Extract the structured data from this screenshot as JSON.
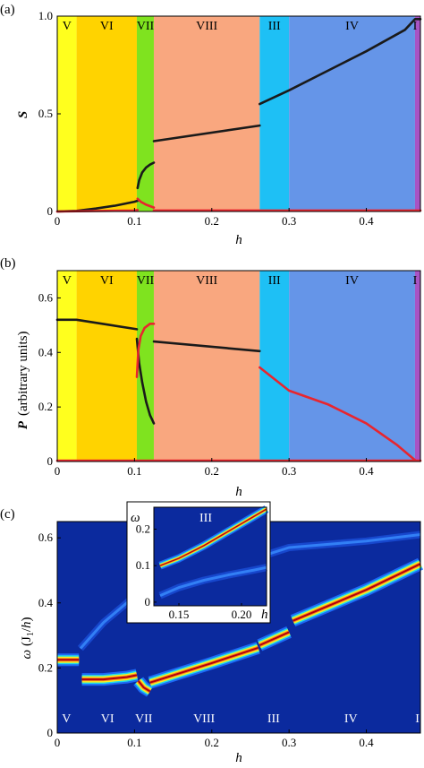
{
  "chart_data": [
    {
      "type": "line",
      "panel_label": "(a)",
      "xlabel": "h",
      "ylabel": "S",
      "xlim": [
        0,
        0.47
      ],
      "ylim": [
        0,
        1.0
      ],
      "x_ticks": [
        0,
        0.1,
        0.2,
        0.3,
        0.4
      ],
      "x_tick_labels": [
        "0",
        "0.1",
        "0.2",
        "0.3",
        "0.4"
      ],
      "y_ticks": [
        0,
        0.5,
        1.0
      ],
      "y_tick_labels": [
        "0",
        "0.5",
        "1.0"
      ],
      "regions": [
        {
          "label": "V",
          "from": 0,
          "to": 0.025,
          "color": "#ffff1e"
        },
        {
          "label": "VI",
          "from": 0.025,
          "to": 0.103,
          "color": "#ffd300"
        },
        {
          "label": "VII",
          "from": 0.103,
          "to": 0.125,
          "color": "#7fe31f"
        },
        {
          "label": "VIII",
          "from": 0.125,
          "to": 0.262,
          "color": "#f9a77f"
        },
        {
          "label": "III",
          "from": 0.262,
          "to": 0.3,
          "color": "#1ec0f5"
        },
        {
          "label": "IV",
          "from": 0.3,
          "to": 0.463,
          "color": "#6595e8"
        },
        {
          "label": "I",
          "from": 0.463,
          "to": 0.47,
          "color": "#a854c4"
        }
      ],
      "series": [
        {
          "color": "#1a1a1a",
          "segments": [
            [
              [
                0,
                0
              ],
              [
                0.025,
                0.003
              ],
              [
                0.05,
                0.015
              ],
              [
                0.075,
                0.03
              ],
              [
                0.1,
                0.05
              ],
              [
                0.104,
                0.055
              ]
            ],
            [
              [
                0.104,
                0.12
              ],
              [
                0.106,
                0.16
              ],
              [
                0.11,
                0.2
              ],
              [
                0.115,
                0.225
              ],
              [
                0.12,
                0.24
              ],
              [
                0.125,
                0.25
              ]
            ],
            [
              [
                0.125,
                0.36
              ],
              [
                0.262,
                0.44
              ]
            ],
            [
              [
                0.262,
                0.55
              ],
              [
                0.3,
                0.62
              ],
              [
                0.35,
                0.72
              ],
              [
                0.4,
                0.82
              ],
              [
                0.45,
                0.93
              ],
              [
                0.463,
                0.985
              ],
              [
                0.47,
                0.985
              ]
            ]
          ]
        },
        {
          "color": "#e8252e",
          "segments": [
            [
              [
                0,
                0
              ],
              [
                0.1,
                0.005
              ],
              [
                0.104,
                0.008
              ]
            ],
            [
              [
                0.104,
                0.065
              ],
              [
                0.108,
                0.05
              ],
              [
                0.115,
                0.035
              ],
              [
                0.125,
                0.02
              ]
            ],
            [
              [
                0.125,
                0.005
              ],
              [
                0.47,
                0.005
              ]
            ]
          ]
        }
      ]
    },
    {
      "type": "line",
      "panel_label": "(b)",
      "xlabel": "h",
      "ylabel": "P",
      "ylabel_suffix": "(arbitrary units)",
      "xlim": [
        0,
        0.47
      ],
      "ylim": [
        0,
        0.7
      ],
      "x_ticks": [
        0,
        0.1,
        0.2,
        0.3,
        0.4
      ],
      "x_tick_labels": [
        "0",
        "0.1",
        "0.2",
        "0.3",
        "0.4"
      ],
      "y_ticks": [
        0,
        0.2,
        0.4,
        0.6
      ],
      "y_tick_labels": [
        "0",
        "0.2",
        "0.4",
        "0.6"
      ],
      "regions": [
        {
          "label": "V",
          "from": 0,
          "to": 0.025,
          "color": "#ffff1e"
        },
        {
          "label": "VI",
          "from": 0.025,
          "to": 0.103,
          "color": "#ffd300"
        },
        {
          "label": "VII",
          "from": 0.103,
          "to": 0.125,
          "color": "#7fe31f"
        },
        {
          "label": "VIII",
          "from": 0.125,
          "to": 0.262,
          "color": "#f9a77f"
        },
        {
          "label": "III",
          "from": 0.262,
          "to": 0.3,
          "color": "#1ec0f5"
        },
        {
          "label": "IV",
          "from": 0.3,
          "to": 0.463,
          "color": "#6595e8"
        },
        {
          "label": "I",
          "from": 0.463,
          "to": 0.47,
          "color": "#a854c4"
        }
      ],
      "series": [
        {
          "color": "#1a1a1a",
          "segments": [
            [
              [
                0,
                0.52
              ],
              [
                0.025,
                0.52
              ],
              [
                0.103,
                0.485
              ]
            ],
            [
              [
                0.103,
                0.45
              ],
              [
                0.106,
                0.36
              ],
              [
                0.11,
                0.29
              ],
              [
                0.115,
                0.22
              ],
              [
                0.12,
                0.17
              ],
              [
                0.125,
                0.14
              ]
            ],
            [
              [
                0.125,
                0.44
              ],
              [
                0.262,
                0.405
              ]
            ]
          ]
        },
        {
          "color": "#e8252e",
          "segments": [
            [
              [
                0.103,
                0.31
              ],
              [
                0.105,
                0.41
              ],
              [
                0.108,
                0.46
              ],
              [
                0.113,
                0.49
              ],
              [
                0.12,
                0.505
              ],
              [
                0.125,
                0.505
              ]
            ],
            [
              [
                0.262,
                0.345
              ],
              [
                0.3,
                0.26
              ],
              [
                0.35,
                0.21
              ],
              [
                0.4,
                0.14
              ],
              [
                0.44,
                0.06
              ],
              [
                0.463,
                0.005
              ]
            ],
            [
              [
                0,
                0.003
              ],
              [
                0.47,
                0.003
              ]
            ]
          ]
        }
      ]
    },
    {
      "type": "heatmap",
      "panel_label": "(c)",
      "xlabel": "h",
      "ylabel": "ω (J1/h)",
      "ylabel_parts": [
        "ω",
        "(J",
        "1",
        "/",
        "h",
        ")"
      ],
      "xlim": [
        0,
        0.47
      ],
      "ylim": [
        0,
        0.65
      ],
      "x_ticks": [
        0,
        0.1,
        0.2,
        0.3,
        0.4
      ],
      "x_tick_labels": [
        "0",
        "0.1",
        "0.2",
        "0.3",
        "0.4"
      ],
      "y_ticks": [
        0,
        0.2,
        0.4,
        0.6
      ],
      "y_tick_labels": [
        "0",
        "0.2",
        "0.4",
        "0.6"
      ],
      "region_labels": [
        {
          "label": "V",
          "x": 0.012
        },
        {
          "label": "VI",
          "x": 0.065
        },
        {
          "label": "VII",
          "x": 0.112
        },
        {
          "label": "VIII",
          "x": 0.19
        },
        {
          "label": "III",
          "x": 0.28
        },
        {
          "label": "IV",
          "x": 0.38
        },
        {
          "label": "I",
          "x": 0.466
        }
      ],
      "modes": [
        {
          "segments": [
            [
              [
                0,
                0.225
              ],
              [
                0.028,
                0.225
              ]
            ],
            [
              [
                0.032,
                0.165
              ],
              [
                0.06,
                0.165
              ],
              [
                0.09,
                0.172
              ],
              [
                0.103,
                0.178
              ]
            ],
            [
              [
                0.105,
                0.16
              ],
              [
                0.112,
                0.14
              ],
              [
                0.12,
                0.128
              ]
            ],
            [
              [
                0.12,
                0.155
              ],
              [
                0.2,
                0.215
              ],
              [
                0.26,
                0.262
              ]
            ],
            [
              [
                0.262,
                0.27
              ],
              [
                0.3,
                0.31
              ]
            ],
            [
              [
                0.305,
                0.345
              ],
              [
                0.35,
                0.39
              ],
              [
                0.4,
                0.44
              ],
              [
                0.47,
                0.52
              ]
            ]
          ]
        },
        {
          "segments": [
            [
              [
                0.03,
                0.26
              ],
              [
                0.06,
                0.34
              ],
              [
                0.09,
                0.4
              ],
              [
                0.103,
                0.43
              ]
            ],
            [
              [
                0.12,
                0.45
              ],
              [
                0.2,
                0.5
              ],
              [
                0.26,
                0.54
              ],
              [
                0.3,
                0.57
              ],
              [
                0.4,
                0.59
              ],
              [
                0.47,
                0.61
              ]
            ]
          ],
          "faint": true
        }
      ],
      "inset": {
        "ylabel": "ω",
        "region_label": "III",
        "xlabel": "h",
        "xlim": [
          0.13,
          0.22
        ],
        "ylim": [
          -0.01,
          0.26
        ],
        "x_ticks": [
          0.15,
          0.2
        ],
        "x_tick_labels": [
          "0.15",
          "0.20"
        ],
        "y_ticks": [
          0,
          0.1,
          0.2
        ],
        "y_tick_labels": [
          "0",
          "0.1",
          "0.2"
        ],
        "modes": [
          {
            "points": [
              [
                0.135,
                0.1
              ],
              [
                0.15,
                0.12
              ],
              [
                0.17,
                0.155
              ],
              [
                0.19,
                0.195
              ],
              [
                0.21,
                0.235
              ],
              [
                0.22,
                0.255
              ]
            ]
          },
          {
            "points": [
              [
                0.135,
                0.018
              ],
              [
                0.15,
                0.04
              ],
              [
                0.17,
                0.06
              ],
              [
                0.19,
                0.075
              ],
              [
                0.21,
                0.088
              ],
              [
                0.22,
                0.095
              ]
            ],
            "faint": true
          }
        ]
      }
    }
  ]
}
